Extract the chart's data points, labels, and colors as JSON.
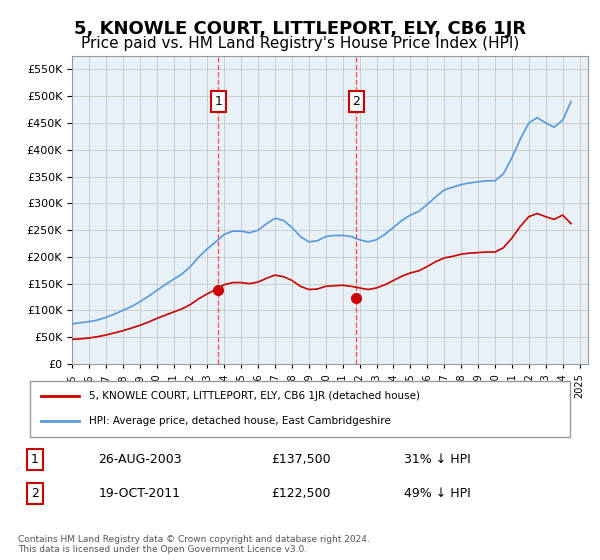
{
  "title": "5, KNOWLE COURT, LITTLEPORT, ELY, CB6 1JR",
  "subtitle": "Price paid vs. HM Land Registry's House Price Index (HPI)",
  "title_fontsize": 13,
  "subtitle_fontsize": 11,
  "hpi_color": "#5599dd",
  "property_color": "#cc0000",
  "marker_color": "#cc0000",
  "vline_color": "#ff4444",
  "background_color": "#ffffff",
  "grid_color": "#cccccc",
  "sale1_date_num": 2003.65,
  "sale1_price": 137500,
  "sale1_label": "1",
  "sale2_date_num": 2011.8,
  "sale2_price": 122500,
  "sale2_label": "2",
  "xmin": 1995,
  "xmax": 2025.5,
  "ymin": 0,
  "ymax": 575000,
  "legend_property": "5, KNOWLE COURT, LITTLEPORT, ELY, CB6 1JR (detached house)",
  "legend_hpi": "HPI: Average price, detached house, East Cambridgeshire",
  "table_row1": [
    "1",
    "26-AUG-2003",
    "£137,500",
    "31% ↓ HPI"
  ],
  "table_row2": [
    "2",
    "19-OCT-2011",
    "£122,500",
    "49% ↓ HPI"
  ],
  "footnote": "Contains HM Land Registry data © Crown copyright and database right 2024.\nThis data is licensed under the Open Government Licence v3.0.",
  "hpi_x": [
    1995,
    1995.5,
    1996,
    1996.5,
    1997,
    1997.5,
    1998,
    1998.5,
    1999,
    1999.5,
    2000,
    2000.5,
    2001,
    2001.5,
    2002,
    2002.5,
    2003,
    2003.5,
    2004,
    2004.5,
    2005,
    2005.5,
    2006,
    2006.5,
    2007,
    2007.5,
    2008,
    2008.5,
    2009,
    2009.5,
    2010,
    2010.5,
    2011,
    2011.5,
    2012,
    2012.5,
    2013,
    2013.5,
    2014,
    2014.5,
    2015,
    2015.5,
    2016,
    2016.5,
    2017,
    2017.5,
    2018,
    2018.5,
    2019,
    2019.5,
    2020,
    2020.5,
    2021,
    2021.5,
    2022,
    2022.5,
    2023,
    2023.5,
    2024,
    2024.5
  ],
  "hpi_y": [
    75000,
    77000,
    79000,
    82000,
    87000,
    93000,
    100000,
    107000,
    116000,
    126000,
    137000,
    148000,
    158000,
    168000,
    182000,
    200000,
    215000,
    228000,
    242000,
    248000,
    248000,
    245000,
    250000,
    262000,
    272000,
    268000,
    255000,
    238000,
    228000,
    230000,
    238000,
    240000,
    240000,
    238000,
    232000,
    228000,
    232000,
    242000,
    255000,
    268000,
    278000,
    285000,
    298000,
    312000,
    325000,
    330000,
    335000,
    338000,
    340000,
    342000,
    342000,
    355000,
    385000,
    420000,
    450000,
    460000,
    450000,
    442000,
    455000,
    490000
  ],
  "prop_x": [
    1995,
    1995.5,
    1996,
    1996.5,
    1997,
    1997.5,
    1998,
    1998.5,
    1999,
    1999.5,
    2000,
    2000.5,
    2001,
    2001.5,
    2002,
    2002.5,
    2003,
    2003.5,
    2004,
    2004.5,
    2005,
    2005.5,
    2006,
    2006.5,
    2007,
    2007.5,
    2008,
    2008.5,
    2009,
    2009.5,
    2010,
    2010.5,
    2011,
    2011.5,
    2012,
    2012.5,
    2013,
    2013.5,
    2014,
    2014.5,
    2015,
    2015.5,
    2016,
    2016.5,
    2017,
    2017.5,
    2018,
    2018.5,
    2019,
    2019.5,
    2020,
    2020.5,
    2021,
    2021.5,
    2022,
    2022.5,
    2023,
    2023.5,
    2024,
    2024.5
  ],
  "prop_y": [
    46000,
    47000,
    48500,
    51000,
    54000,
    58000,
    62000,
    67000,
    72000,
    78000,
    85000,
    91000,
    97000,
    103000,
    111000,
    122000,
    131000,
    139000,
    148000,
    152000,
    152000,
    150000,
    153000,
    160000,
    166000,
    163000,
    156000,
    145000,
    139000,
    140000,
    145000,
    146000,
    147000,
    145000,
    142000,
    139000,
    142000,
    148000,
    156000,
    164000,
    170000,
    174000,
    182000,
    191000,
    198000,
    201000,
    205000,
    207000,
    208000,
    209000,
    209000,
    217000,
    235000,
    257000,
    275000,
    281000,
    275000,
    270000,
    278000,
    262000
  ]
}
